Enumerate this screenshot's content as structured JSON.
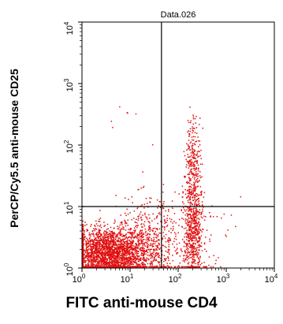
{
  "chart_data": {
    "type": "scatter",
    "title": "Data.026",
    "xlabel": "FITC anti-mouse CD4",
    "ylabel": "PerCP/Cy5.5 anti-mouse CD25",
    "x_scale": "log",
    "y_scale": "log",
    "xlim": [
      1,
      10000
    ],
    "ylim": [
      1,
      10000
    ],
    "xticks": [
      {
        "value": 1,
        "mantissa": "10",
        "exp": "0"
      },
      {
        "value": 10,
        "mantissa": "10",
        "exp": "1"
      },
      {
        "value": 100,
        "mantissa": "10",
        "exp": "2"
      },
      {
        "value": 1000,
        "mantissa": "10",
        "exp": "3"
      },
      {
        "value": 10000,
        "mantissa": "10",
        "exp": "4"
      }
    ],
    "yticks": [
      {
        "value": 1,
        "mantissa": "10",
        "exp": "0"
      },
      {
        "value": 10,
        "mantissa": "10",
        "exp": "1"
      },
      {
        "value": 100,
        "mantissa": "10",
        "exp": "2"
      },
      {
        "value": 1000,
        "mantissa": "10",
        "exp": "3"
      },
      {
        "value": 10000,
        "mantissa": "10",
        "exp": "4"
      }
    ],
    "quadrant_gates": {
      "x": 45,
      "y": 10
    },
    "grid": false,
    "legend": "none",
    "point_color": "#e01010",
    "populations": [
      {
        "x_center": 3.5,
        "y_center": 1.6,
        "x_spread_decades": 0.42,
        "y_spread_decades": 0.22,
        "count": 2600
      },
      {
        "x_center": 25,
        "y_center": 2.5,
        "x_spread_decades": 0.35,
        "y_spread_decades": 0.35,
        "count": 500
      },
      {
        "x_center": 200,
        "y_center": 4,
        "x_spread_decades": 0.1,
        "y_spread_decades": 0.45,
        "count": 650
      },
      {
        "x_center": 200,
        "y_center": 60,
        "x_spread_decades": 0.08,
        "y_spread_decades": 0.35,
        "count": 220
      },
      {
        "x_center": 120,
        "y_center": 3,
        "x_spread_decades": 0.5,
        "y_spread_decades": 0.5,
        "count": 120
      },
      {
        "x_center": 8,
        "y_center": 300,
        "x_spread_decades": 0.25,
        "y_spread_decades": 0.15,
        "count": 6
      }
    ]
  }
}
